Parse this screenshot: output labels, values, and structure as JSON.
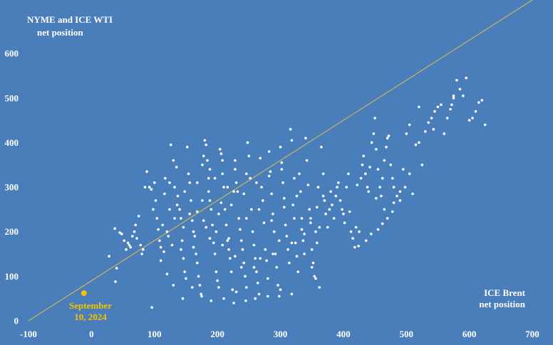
{
  "chart_data": {
    "type": "scatter",
    "title_lines": [
      "NYME and ICE WTI",
      "net position"
    ],
    "xlabel_lines": [
      "ICE Brent",
      "net position"
    ],
    "xlim": [
      -100,
      700
    ],
    "ylim": [
      0,
      720
    ],
    "xticks": [
      "-100",
      "0",
      "100",
      "200",
      "300",
      "400",
      "500",
      "600",
      "700"
    ],
    "yticks": [
      "0",
      "100",
      "200",
      "300",
      "400",
      "500",
      "600"
    ],
    "grid": false,
    "colors": {
      "background": "#4a7ebb",
      "points": "#ffffff",
      "highlight": "#f2c200",
      "reference_line": "#c8b45a"
    },
    "reference_line": {
      "from": [
        -100,
        0
      ],
      "to": [
        700,
        720
      ]
    },
    "highlight": {
      "x": -12,
      "y": 62,
      "label_lines": [
        "September",
        "10, 2024"
      ]
    },
    "points": [
      [
        28,
        145
      ],
      [
        38,
        88
      ],
      [
        40,
        118
      ],
      [
        37,
        207
      ],
      [
        45,
        198
      ],
      [
        48,
        195
      ],
      [
        52,
        180
      ],
      [
        55,
        160
      ],
      [
        58,
        175
      ],
      [
        60,
        170
      ],
      [
        62,
        165
      ],
      [
        65,
        190
      ],
      [
        68,
        200
      ],
      [
        70,
        215
      ],
      [
        72,
        185
      ],
      [
        75,
        235
      ],
      [
        78,
        170
      ],
      [
        80,
        150
      ],
      [
        82,
        160
      ],
      [
        85,
        300
      ],
      [
        88,
        335
      ],
      [
        92,
        300
      ],
      [
        95,
        295
      ],
      [
        98,
        250
      ],
      [
        100,
        310
      ],
      [
        102,
        270
      ],
      [
        104,
        230
      ],
      [
        106,
        205
      ],
      [
        108,
        180
      ],
      [
        110,
        165
      ],
      [
        113,
        215
      ],
      [
        115,
        155
      ],
      [
        117,
        320
      ],
      [
        120,
        200
      ],
      [
        122,
        190
      ],
      [
        124,
        250
      ],
      [
        126,
        395
      ],
      [
        128,
        170
      ],
      [
        130,
        360
      ],
      [
        132,
        300
      ],
      [
        135,
        345
      ],
      [
        137,
        280
      ],
      [
        140,
        250
      ],
      [
        142,
        230
      ],
      [
        144,
        180
      ],
      [
        146,
        140
      ],
      [
        148,
        110
      ],
      [
        150,
        95
      ],
      [
        152,
        390
      ],
      [
        154,
        330
      ],
      [
        156,
        310
      ],
      [
        158,
        270
      ],
      [
        160,
        225
      ],
      [
        162,
        200
      ],
      [
        164,
        190
      ],
      [
        166,
        150
      ],
      [
        168,
        130
      ],
      [
        170,
        100
      ],
      [
        172,
        80
      ],
      [
        174,
        60
      ],
      [
        176,
        350
      ],
      [
        178,
        370
      ],
      [
        180,
        405
      ],
      [
        182,
        395
      ],
      [
        184,
        360
      ],
      [
        186,
        290
      ],
      [
        188,
        270
      ],
      [
        190,
        250
      ],
      [
        192,
        215
      ],
      [
        194,
        175
      ],
      [
        196,
        150
      ],
      [
        198,
        110
      ],
      [
        200,
        90
      ],
      [
        202,
        75
      ],
      [
        204,
        385
      ],
      [
        206,
        375
      ],
      [
        208,
        330
      ],
      [
        210,
        300
      ],
      [
        212,
        250
      ],
      [
        214,
        215
      ],
      [
        216,
        180
      ],
      [
        218,
        160
      ],
      [
        220,
        140
      ],
      [
        222,
        110
      ],
      [
        224,
        70
      ],
      [
        226,
        40
      ],
      [
        228,
        360
      ],
      [
        230,
        310
      ],
      [
        232,
        290
      ],
      [
        234,
        230
      ],
      [
        236,
        205
      ],
      [
        238,
        180
      ],
      [
        240,
        160
      ],
      [
        242,
        130
      ],
      [
        244,
        100
      ],
      [
        246,
        75
      ],
      [
        248,
        400
      ],
      [
        250,
        370
      ],
      [
        252,
        320
      ],
      [
        254,
        250
      ],
      [
        256,
        200
      ],
      [
        258,
        170
      ],
      [
        260,
        140
      ],
      [
        262,
        110
      ],
      [
        264,
        85
      ],
      [
        266,
        60
      ],
      [
        268,
        365
      ],
      [
        270,
        300
      ],
      [
        272,
        270
      ],
      [
        274,
        220
      ],
      [
        276,
        160
      ],
      [
        278,
        135
      ],
      [
        280,
        95
      ],
      [
        282,
        380
      ],
      [
        284,
        335
      ],
      [
        286,
        285
      ],
      [
        288,
        240
      ],
      [
        290,
        200
      ],
      [
        292,
        150
      ],
      [
        294,
        120
      ],
      [
        296,
        80
      ],
      [
        298,
        55
      ],
      [
        300,
        390
      ],
      [
        302,
        355
      ],
      [
        304,
        310
      ],
      [
        306,
        275
      ],
      [
        308,
        215
      ],
      [
        310,
        190
      ],
      [
        312,
        160
      ],
      [
        314,
        130
      ],
      [
        316,
        430
      ],
      [
        318,
        405
      ],
      [
        320,
        260
      ],
      [
        322,
        230
      ],
      [
        324,
        175
      ],
      [
        326,
        145
      ],
      [
        328,
        110
      ],
      [
        330,
        330
      ],
      [
        332,
        290
      ],
      [
        334,
        205
      ],
      [
        336,
        180
      ],
      [
        338,
        150
      ],
      [
        340,
        410
      ],
      [
        342,
        360
      ],
      [
        344,
        305
      ],
      [
        346,
        250
      ],
      [
        348,
        220
      ],
      [
        350,
        160
      ],
      [
        352,
        130
      ],
      [
        354,
        100
      ],
      [
        356,
        200
      ],
      [
        358,
        175
      ],
      [
        360,
        300
      ],
      [
        362,
        210
      ],
      [
        365,
        390
      ],
      [
        368,
        330
      ],
      [
        370,
        270
      ],
      [
        372,
        240
      ],
      [
        375,
        210
      ],
      [
        378,
        250
      ],
      [
        380,
        290
      ],
      [
        382,
        260
      ],
      [
        385,
        230
      ],
      [
        388,
        280
      ],
      [
        390,
        300
      ],
      [
        392,
        310
      ],
      [
        395,
        270
      ],
      [
        398,
        250
      ],
      [
        400,
        240
      ],
      [
        402,
        220
      ],
      [
        405,
        300
      ],
      [
        408,
        330
      ],
      [
        410,
        245
      ],
      [
        412,
        200
      ],
      [
        415,
        185
      ],
      [
        418,
        165
      ],
      [
        420,
        210
      ],
      [
        422,
        305
      ],
      [
        425,
        200
      ],
      [
        428,
        320
      ],
      [
        430,
        350
      ],
      [
        432,
        370
      ],
      [
        435,
        330
      ],
      [
        438,
        300
      ],
      [
        440,
        290
      ],
      [
        442,
        345
      ],
      [
        445,
        400
      ],
      [
        448,
        420
      ],
      [
        450,
        455
      ],
      [
        452,
        385
      ],
      [
        455,
        340
      ],
      [
        458,
        300
      ],
      [
        460,
        280
      ],
      [
        462,
        320
      ],
      [
        465,
        360
      ],
      [
        468,
        390
      ],
      [
        470,
        410
      ],
      [
        472,
        415
      ],
      [
        475,
        350
      ],
      [
        478,
        320
      ],
      [
        480,
        300
      ],
      [
        485,
        280
      ],
      [
        490,
        270
      ],
      [
        495,
        340
      ],
      [
        500,
        420
      ],
      [
        505,
        440
      ],
      [
        510,
        285
      ],
      [
        515,
        395
      ],
      [
        520,
        400
      ],
      [
        525,
        350
      ],
      [
        530,
        425
      ],
      [
        535,
        445
      ],
      [
        540,
        455
      ],
      [
        545,
        470
      ],
      [
        550,
        480
      ],
      [
        555,
        485
      ],
      [
        560,
        420
      ],
      [
        565,
        455
      ],
      [
        570,
        475
      ],
      [
        575,
        500
      ],
      [
        580,
        540
      ],
      [
        585,
        520
      ],
      [
        590,
        505
      ],
      [
        595,
        545
      ],
      [
        600,
        450
      ],
      [
        605,
        455
      ],
      [
        610,
        470
      ],
      [
        615,
        490
      ],
      [
        620,
        495
      ],
      [
        625,
        440
      ],
      [
        575,
        505
      ],
      [
        572,
        485
      ],
      [
        520,
        480
      ],
      [
        543,
        430
      ],
      [
        498,
        300
      ],
      [
        505,
        330
      ],
      [
        478,
        245
      ],
      [
        470,
        230
      ],
      [
        462,
        218
      ],
      [
        455,
        205
      ],
      [
        444,
        195
      ],
      [
        436,
        180
      ],
      [
        424,
        168
      ],
      [
        452,
        275
      ],
      [
        465,
        250
      ],
      [
        480,
        265
      ],
      [
        490,
        290
      ],
      [
        350,
        120
      ],
      [
        356,
        95
      ],
      [
        362,
        75
      ],
      [
        318,
        60
      ],
      [
        300,
        70
      ],
      [
        280,
        55
      ],
      [
        260,
        50
      ],
      [
        245,
        45
      ],
      [
        230,
        65
      ],
      [
        210,
        50
      ],
      [
        190,
        45
      ],
      [
        175,
        55
      ],
      [
        160,
        75
      ],
      [
        145,
        50
      ],
      [
        130,
        80
      ],
      [
        120,
        105
      ],
      [
        110,
        135
      ],
      [
        96,
        30
      ],
      [
        146,
        210
      ],
      [
        186,
        320
      ],
      [
        206,
        265
      ],
      [
        226,
        290
      ],
      [
        246,
        330
      ],
      [
        266,
        250
      ],
      [
        286,
        225
      ],
      [
        306,
        255
      ],
      [
        326,
        280
      ],
      [
        246,
        230
      ],
      [
        216,
        300
      ],
      [
        196,
        320
      ],
      [
        176,
        270
      ],
      [
        156,
        240
      ],
      [
        136,
        260
      ],
      [
        116,
        285
      ],
      [
        148,
        290
      ],
      [
        168,
        310
      ],
      [
        188,
        340
      ],
      [
        208,
        360
      ],
      [
        228,
        340
      ],
      [
        168,
        245
      ],
      [
        178,
        225
      ],
      [
        188,
        185
      ],
      [
        198,
        200
      ],
      [
        208,
        170
      ],
      [
        218,
        185
      ],
      [
        228,
        145
      ],
      [
        238,
        120
      ],
      [
        258,
        120
      ],
      [
        268,
        140
      ],
      [
        288,
        150
      ],
      [
        298,
        180
      ],
      [
        318,
        175
      ],
      [
        338,
        195
      ],
      [
        348,
        230
      ],
      [
        358,
        255
      ],
      [
        368,
        280
      ],
      [
        334,
        230
      ],
      [
        322,
        320
      ],
      [
        302,
        340
      ],
      [
        282,
        325
      ],
      [
        262,
        310
      ],
      [
        242,
        285
      ],
      [
        222,
        260
      ],
      [
        202,
        240
      ],
      [
        182,
        210
      ],
      [
        162,
        165
      ],
      [
        142,
        160
      ],
      [
        132,
        230
      ],
      [
        124,
        310
      ]
    ]
  }
}
